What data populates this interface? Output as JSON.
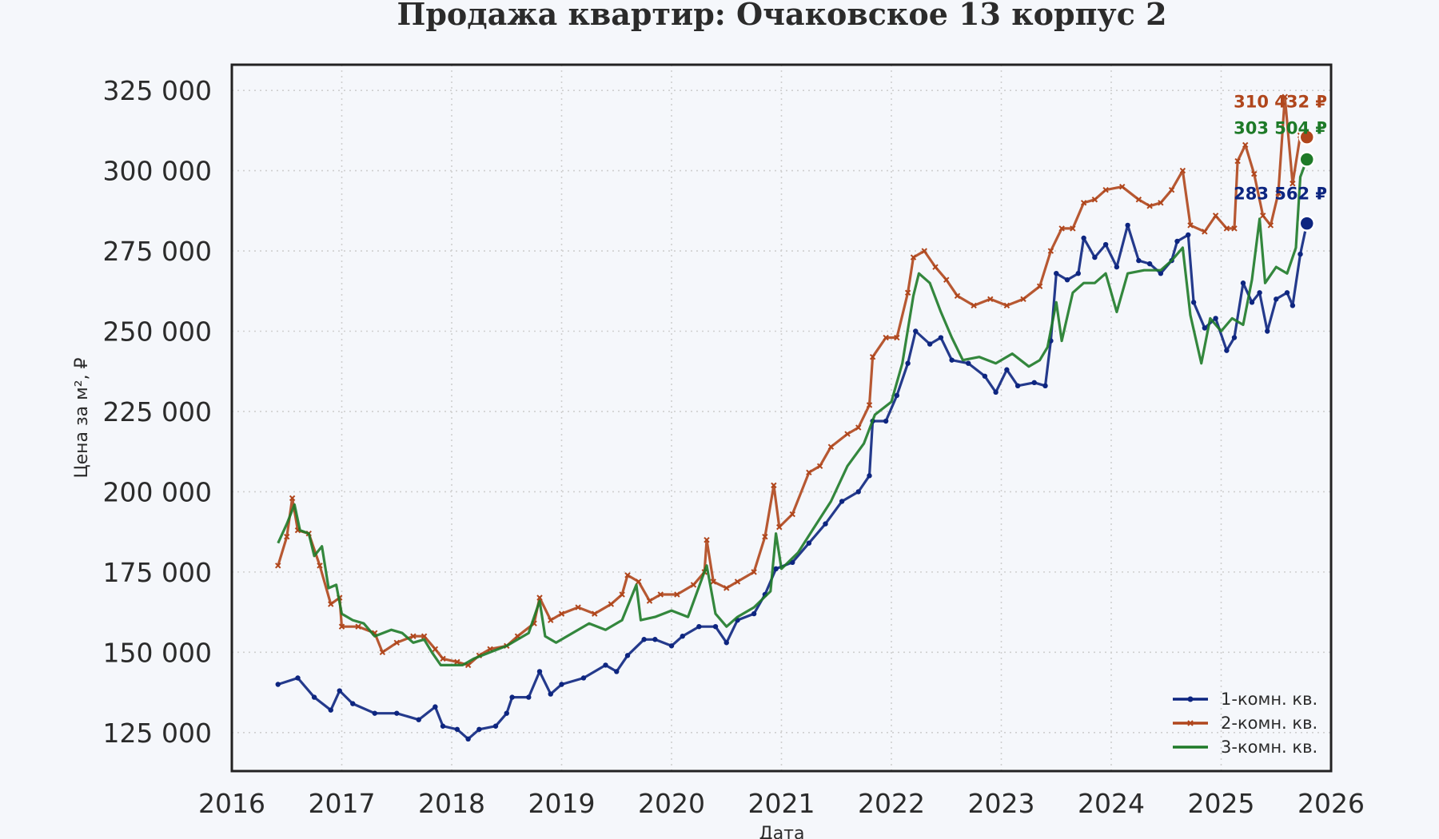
{
  "chart_data": {
    "type": "line",
    "title": "Продажа квартир: Очаковское 13 корпус 2",
    "xlabel": "Дата",
    "ylabel": "Цена за м², ₽",
    "xlim": [
      2016,
      2026
    ],
    "ylim": [
      113000,
      333000
    ],
    "x_ticks": [
      2016,
      2017,
      2018,
      2019,
      2020,
      2021,
      2022,
      2023,
      2024,
      2025,
      2026
    ],
    "y_ticks": [
      125000,
      150000,
      175000,
      200000,
      225000,
      250000,
      275000,
      300000,
      325000
    ],
    "y_tick_labels": [
      "125 000",
      "150 000",
      "175 000",
      "200 000",
      "225 000",
      "250 000",
      "275 000",
      "300 000",
      "325 000"
    ],
    "grid": true,
    "legend_position": "bottom-right",
    "series": [
      {
        "name": "1-комн. кв.",
        "color": "#0d2580",
        "marker": "dot",
        "points": [
          [
            2016.42,
            140000
          ],
          [
            2016.6,
            142000
          ],
          [
            2016.75,
            136000
          ],
          [
            2016.9,
            132000
          ],
          [
            2016.98,
            138000
          ],
          [
            2017.1,
            134000
          ],
          [
            2017.3,
            131000
          ],
          [
            2017.5,
            131000
          ],
          [
            2017.7,
            129000
          ],
          [
            2017.85,
            133000
          ],
          [
            2017.92,
            127000
          ],
          [
            2018.05,
            126000
          ],
          [
            2018.15,
            123000
          ],
          [
            2018.25,
            126000
          ],
          [
            2018.4,
            127000
          ],
          [
            2018.5,
            131000
          ],
          [
            2018.55,
            136000
          ],
          [
            2018.7,
            136000
          ],
          [
            2018.8,
            144000
          ],
          [
            2018.9,
            137000
          ],
          [
            2019.0,
            140000
          ],
          [
            2019.2,
            142000
          ],
          [
            2019.4,
            146000
          ],
          [
            2019.5,
            144000
          ],
          [
            2019.6,
            149000
          ],
          [
            2019.75,
            154000
          ],
          [
            2019.85,
            154000
          ],
          [
            2020.0,
            152000
          ],
          [
            2020.1,
            155000
          ],
          [
            2020.25,
            158000
          ],
          [
            2020.4,
            158000
          ],
          [
            2020.5,
            153000
          ],
          [
            2020.6,
            160000
          ],
          [
            2020.75,
            162000
          ],
          [
            2020.85,
            168000
          ],
          [
            2020.95,
            176000
          ],
          [
            2021.1,
            178000
          ],
          [
            2021.25,
            184000
          ],
          [
            2021.4,
            190000
          ],
          [
            2021.55,
            197000
          ],
          [
            2021.7,
            200000
          ],
          [
            2021.8,
            205000
          ],
          [
            2021.83,
            222000
          ],
          [
            2021.95,
            222000
          ],
          [
            2022.05,
            230000
          ],
          [
            2022.15,
            240000
          ],
          [
            2022.22,
            250000
          ],
          [
            2022.35,
            246000
          ],
          [
            2022.45,
            248000
          ],
          [
            2022.55,
            241000
          ],
          [
            2022.7,
            240000
          ],
          [
            2022.85,
            236000
          ],
          [
            2022.95,
            231000
          ],
          [
            2023.05,
            238000
          ],
          [
            2023.15,
            233000
          ],
          [
            2023.3,
            234000
          ],
          [
            2023.4,
            233000
          ],
          [
            2023.45,
            247000
          ],
          [
            2023.5,
            268000
          ],
          [
            2023.6,
            266000
          ],
          [
            2023.7,
            268000
          ],
          [
            2023.75,
            279000
          ],
          [
            2023.85,
            273000
          ],
          [
            2023.95,
            277000
          ],
          [
            2024.05,
            270000
          ],
          [
            2024.15,
            283000
          ],
          [
            2024.25,
            272000
          ],
          [
            2024.35,
            271000
          ],
          [
            2024.45,
            268000
          ],
          [
            2024.55,
            272000
          ],
          [
            2024.6,
            278000
          ],
          [
            2024.7,
            280000
          ],
          [
            2024.75,
            259000
          ],
          [
            2024.85,
            251000
          ],
          [
            2024.95,
            254000
          ],
          [
            2025.05,
            244000
          ],
          [
            2025.12,
            248000
          ],
          [
            2025.2,
            265000
          ],
          [
            2025.28,
            259000
          ],
          [
            2025.35,
            262000
          ],
          [
            2025.42,
            250000
          ],
          [
            2025.5,
            260000
          ],
          [
            2025.6,
            262000
          ],
          [
            2025.65,
            258000
          ],
          [
            2025.72,
            274000
          ],
          [
            2025.78,
            283562
          ]
        ]
      },
      {
        "name": "2-комн. кв.",
        "color": "#b0461c",
        "marker": "x",
        "points": [
          [
            2016.42,
            177000
          ],
          [
            2016.5,
            186000
          ],
          [
            2016.55,
            198000
          ],
          [
            2016.6,
            188000
          ],
          [
            2016.7,
            187000
          ],
          [
            2016.8,
            177000
          ],
          [
            2016.9,
            165000
          ],
          [
            2016.98,
            167000
          ],
          [
            2017.0,
            158000
          ],
          [
            2017.15,
            158000
          ],
          [
            2017.3,
            156000
          ],
          [
            2017.37,
            150000
          ],
          [
            2017.5,
            153000
          ],
          [
            2017.65,
            155000
          ],
          [
            2017.75,
            155000
          ],
          [
            2017.85,
            151000
          ],
          [
            2017.92,
            148000
          ],
          [
            2018.05,
            147000
          ],
          [
            2018.15,
            146000
          ],
          [
            2018.25,
            149000
          ],
          [
            2018.35,
            151000
          ],
          [
            2018.5,
            152000
          ],
          [
            2018.6,
            155000
          ],
          [
            2018.75,
            159000
          ],
          [
            2018.8,
            167000
          ],
          [
            2018.9,
            160000
          ],
          [
            2019.0,
            162000
          ],
          [
            2019.15,
            164000
          ],
          [
            2019.3,
            162000
          ],
          [
            2019.45,
            165000
          ],
          [
            2019.55,
            168000
          ],
          [
            2019.6,
            174000
          ],
          [
            2019.7,
            172000
          ],
          [
            2019.8,
            166000
          ],
          [
            2019.9,
            168000
          ],
          [
            2020.05,
            168000
          ],
          [
            2020.2,
            171000
          ],
          [
            2020.3,
            175000
          ],
          [
            2020.32,
            185000
          ],
          [
            2020.38,
            172000
          ],
          [
            2020.5,
            170000
          ],
          [
            2020.6,
            172000
          ],
          [
            2020.75,
            175000
          ],
          [
            2020.85,
            186000
          ],
          [
            2020.93,
            202000
          ],
          [
            2020.98,
            189000
          ],
          [
            2021.1,
            193000
          ],
          [
            2021.25,
            206000
          ],
          [
            2021.35,
            208000
          ],
          [
            2021.45,
            214000
          ],
          [
            2021.6,
            218000
          ],
          [
            2021.7,
            220000
          ],
          [
            2021.8,
            227000
          ],
          [
            2021.83,
            242000
          ],
          [
            2021.95,
            248000
          ],
          [
            2022.05,
            248000
          ],
          [
            2022.15,
            262000
          ],
          [
            2022.2,
            273000
          ],
          [
            2022.3,
            275000
          ],
          [
            2022.4,
            270000
          ],
          [
            2022.5,
            266000
          ],
          [
            2022.6,
            261000
          ],
          [
            2022.75,
            258000
          ],
          [
            2022.9,
            260000
          ],
          [
            2023.05,
            258000
          ],
          [
            2023.2,
            260000
          ],
          [
            2023.35,
            264000
          ],
          [
            2023.45,
            275000
          ],
          [
            2023.55,
            282000
          ],
          [
            2023.65,
            282000
          ],
          [
            2023.75,
            290000
          ],
          [
            2023.85,
            291000
          ],
          [
            2023.95,
            294000
          ],
          [
            2024.1,
            295000
          ],
          [
            2024.25,
            291000
          ],
          [
            2024.35,
            289000
          ],
          [
            2024.45,
            290000
          ],
          [
            2024.55,
            294000
          ],
          [
            2024.65,
            300000
          ],
          [
            2024.72,
            283000
          ],
          [
            2024.85,
            281000
          ],
          [
            2024.95,
            286000
          ],
          [
            2025.05,
            282000
          ],
          [
            2025.12,
            282000
          ],
          [
            2025.15,
            303000
          ],
          [
            2025.22,
            308000
          ],
          [
            2025.3,
            299000
          ],
          [
            2025.38,
            286000
          ],
          [
            2025.45,
            283000
          ],
          [
            2025.52,
            293000
          ],
          [
            2025.58,
            323000
          ],
          [
            2025.65,
            296000
          ],
          [
            2025.72,
            311000
          ],
          [
            2025.78,
            310432
          ]
        ]
      },
      {
        "name": "3-комн. кв.",
        "color": "#1e7a28",
        "marker": "none",
        "points": [
          [
            2016.42,
            184000
          ],
          [
            2016.5,
            190000
          ],
          [
            2016.57,
            196000
          ],
          [
            2016.62,
            188000
          ],
          [
            2016.7,
            187000
          ],
          [
            2016.75,
            180000
          ],
          [
            2016.82,
            183000
          ],
          [
            2016.88,
            170000
          ],
          [
            2016.95,
            171000
          ],
          [
            2017.0,
            162000
          ],
          [
            2017.1,
            160000
          ],
          [
            2017.2,
            159000
          ],
          [
            2017.3,
            155000
          ],
          [
            2017.45,
            157000
          ],
          [
            2017.55,
            156000
          ],
          [
            2017.65,
            153000
          ],
          [
            2017.75,
            154000
          ],
          [
            2017.82,
            150000
          ],
          [
            2017.9,
            146000
          ],
          [
            2018.0,
            146000
          ],
          [
            2018.1,
            146000
          ],
          [
            2018.2,
            148000
          ],
          [
            2018.35,
            150000
          ],
          [
            2018.5,
            152000
          ],
          [
            2018.6,
            154000
          ],
          [
            2018.7,
            156000
          ],
          [
            2018.8,
            166000
          ],
          [
            2018.85,
            155000
          ],
          [
            2018.95,
            153000
          ],
          [
            2019.1,
            156000
          ],
          [
            2019.25,
            159000
          ],
          [
            2019.4,
            157000
          ],
          [
            2019.55,
            160000
          ],
          [
            2019.68,
            171000
          ],
          [
            2019.72,
            160000
          ],
          [
            2019.85,
            161000
          ],
          [
            2020.0,
            163000
          ],
          [
            2020.15,
            161000
          ],
          [
            2020.32,
            177000
          ],
          [
            2020.4,
            162000
          ],
          [
            2020.5,
            158000
          ],
          [
            2020.6,
            161000
          ],
          [
            2020.75,
            164000
          ],
          [
            2020.9,
            169000
          ],
          [
            2020.95,
            187000
          ],
          [
            2021.0,
            176000
          ],
          [
            2021.15,
            181000
          ],
          [
            2021.3,
            189000
          ],
          [
            2021.45,
            197000
          ],
          [
            2021.6,
            208000
          ],
          [
            2021.75,
            215000
          ],
          [
            2021.85,
            224000
          ],
          [
            2022.0,
            228000
          ],
          [
            2022.1,
            240000
          ],
          [
            2022.2,
            261000
          ],
          [
            2022.25,
            268000
          ],
          [
            2022.35,
            265000
          ],
          [
            2022.45,
            256000
          ],
          [
            2022.55,
            248000
          ],
          [
            2022.65,
            241000
          ],
          [
            2022.8,
            242000
          ],
          [
            2022.95,
            240000
          ],
          [
            2023.1,
            243000
          ],
          [
            2023.25,
            239000
          ],
          [
            2023.35,
            241000
          ],
          [
            2023.42,
            245000
          ],
          [
            2023.5,
            259000
          ],
          [
            2023.55,
            247000
          ],
          [
            2023.65,
            262000
          ],
          [
            2023.75,
            265000
          ],
          [
            2023.85,
            265000
          ],
          [
            2023.95,
            268000
          ],
          [
            2024.05,
            256000
          ],
          [
            2024.15,
            268000
          ],
          [
            2024.3,
            269000
          ],
          [
            2024.45,
            269000
          ],
          [
            2024.55,
            272000
          ],
          [
            2024.65,
            276000
          ],
          [
            2024.72,
            255000
          ],
          [
            2024.82,
            240000
          ],
          [
            2024.9,
            254000
          ],
          [
            2025.0,
            250000
          ],
          [
            2025.1,
            254000
          ],
          [
            2025.2,
            252000
          ],
          [
            2025.28,
            266000
          ],
          [
            2025.35,
            285000
          ],
          [
            2025.4,
            265000
          ],
          [
            2025.5,
            270000
          ],
          [
            2025.6,
            268000
          ],
          [
            2025.68,
            276000
          ],
          [
            2025.72,
            298000
          ],
          [
            2025.78,
            303504
          ]
        ]
      }
    ],
    "end_values": [
      {
        "series": 1,
        "value": 310432,
        "label": "310 432 ₽"
      },
      {
        "series": 2,
        "value": 303504,
        "label": "303 504 ₽"
      },
      {
        "series": 0,
        "value": 283562,
        "label": "283 562 ₽"
      }
    ]
  }
}
